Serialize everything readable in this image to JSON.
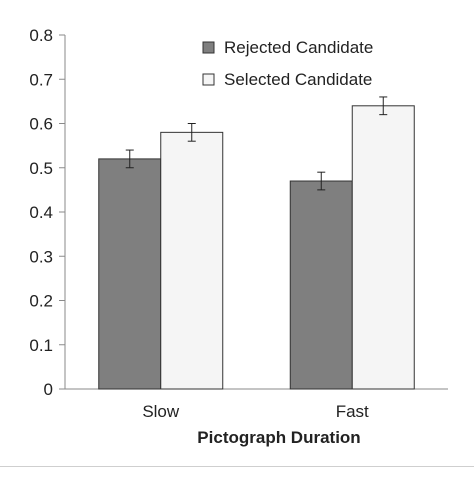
{
  "chart_data": {
    "type": "bar",
    "categories": [
      "Slow",
      "Fast"
    ],
    "series": [
      {
        "name": "Rejected Candidate",
        "color": "#7f7f7f",
        "values": [
          0.52,
          0.47
        ],
        "errors": [
          0.02,
          0.02
        ]
      },
      {
        "name": "Selected Candidate",
        "color": "#f5f5f5",
        "values": [
          0.58,
          0.64
        ],
        "errors": [
          0.02,
          0.02
        ]
      }
    ],
    "title": "",
    "xlabel": "Pictograph Duration",
    "ylabel": "",
    "ylim": [
      0,
      0.8
    ],
    "yticks": [
      "0",
      "0.1",
      "0.2",
      "0.3",
      "0.4",
      "0.5",
      "0.6",
      "0.7",
      "0.8"
    ],
    "grid": false,
    "legend_position": "top-right"
  }
}
